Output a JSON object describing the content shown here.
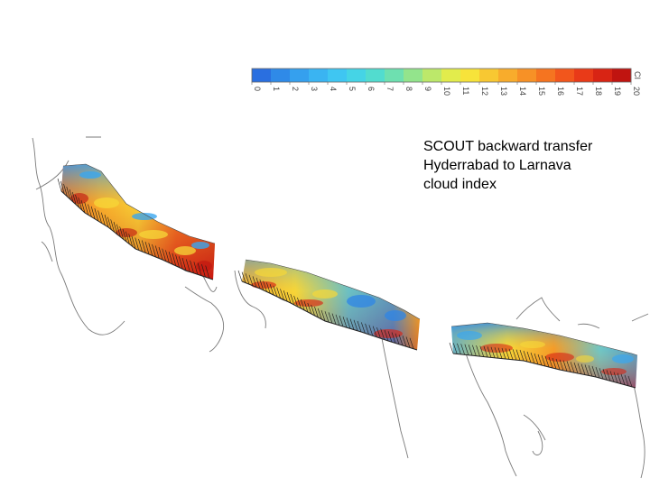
{
  "caption": {
    "line1": "SCOUT backward transfer",
    "line2": "Hyderrabad to Larnava",
    "line3": "cloud index"
  },
  "colorbar": {
    "unit_label": "CI",
    "ticks": [
      "0",
      "1",
      "2",
      "3",
      "4",
      "5",
      "6",
      "7",
      "8",
      "9",
      "10",
      "11",
      "12",
      "13",
      "14",
      "15",
      "16",
      "17",
      "18",
      "19",
      "20"
    ],
    "colors": [
      "#2a6fe0",
      "#2f8ae8",
      "#35a0ee",
      "#3ab4f2",
      "#3fc6f2",
      "#45d4e6",
      "#52dccf",
      "#6ee0b0",
      "#93e48c",
      "#bce86a",
      "#e2ec4c",
      "#f7e33a",
      "#f8c832",
      "#f8ac2c",
      "#f79126",
      "#f57420",
      "#f2561c",
      "#e93a18",
      "#d82414",
      "#c01410"
    ]
  },
  "map": {
    "panels": 3,
    "colors": {
      "high_ci": "#d81d12",
      "mid_ci": "#f7c52f",
      "low_ci": "#2f8ae8",
      "coastline": "#7a7a7a",
      "arrows": "#1a1a1a"
    }
  }
}
